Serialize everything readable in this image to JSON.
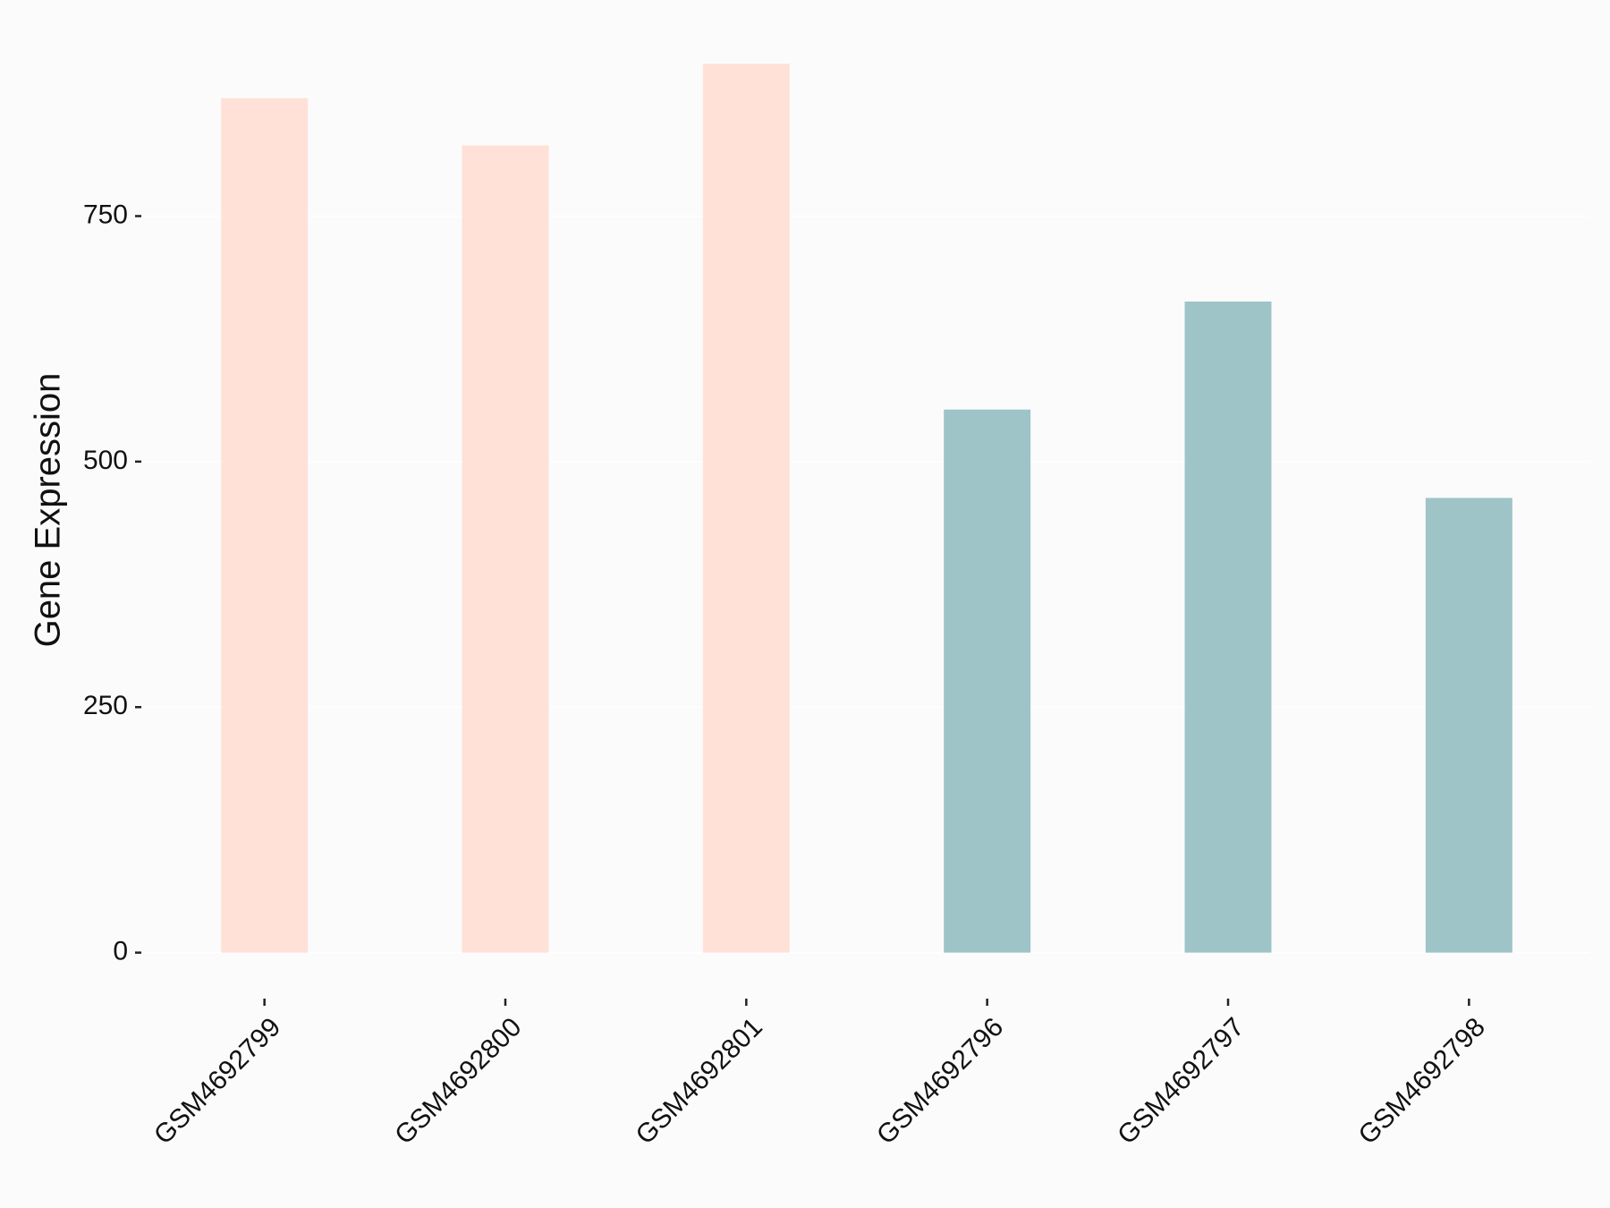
{
  "chart_data": {
    "type": "bar",
    "y_label": "Gene Expression",
    "categories": [
      "GSM4692799",
      "GSM4692800",
      "GSM4692801",
      "GSM4692796",
      "GSM4692797",
      "GSM4692798"
    ],
    "values": [
      870,
      822,
      905,
      553,
      663,
      463
    ],
    "colors": [
      "#ffe1d8",
      "#ffe1d8",
      "#ffe1d8",
      "#9ec4c8",
      "#9ec4c8",
      "#9ec4c8"
    ],
    "ylim": [
      -45,
      950
    ],
    "yticks": [
      0,
      250,
      500,
      750
    ],
    "grid": true
  }
}
